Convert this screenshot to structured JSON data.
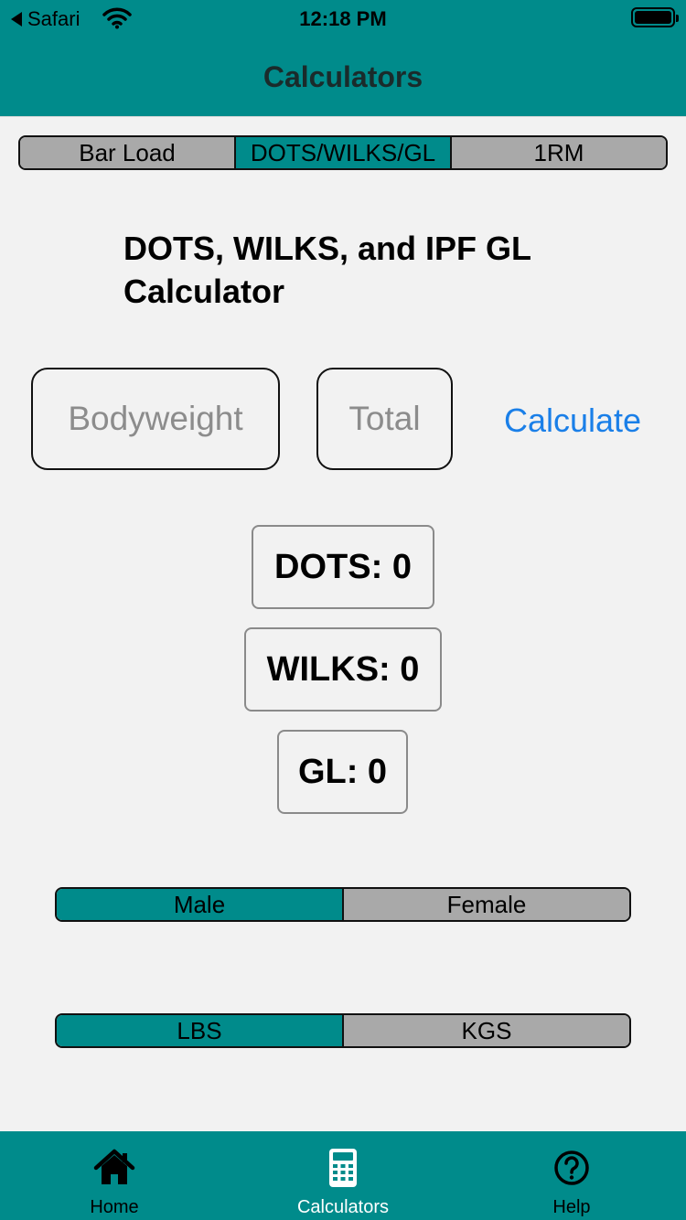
{
  "status_bar": {
    "back_label": "Safari",
    "time": "12:18 PM"
  },
  "nav": {
    "title": "Calculators"
  },
  "calculator_tabs": [
    {
      "label": "Bar Load",
      "active": false
    },
    {
      "label": "DOTS/WILKS/GL",
      "active": true
    },
    {
      "label": "1RM",
      "active": false
    }
  ],
  "calculator": {
    "title": "DOTS, WILKS, and IPF GL Calculator",
    "bodyweight_placeholder": "Bodyweight",
    "total_placeholder": "Total",
    "calculate_label": "Calculate"
  },
  "results": {
    "dots": "DOTS: 0",
    "wilks": "WILKS: 0",
    "gl": "GL: 0"
  },
  "sex_options": [
    {
      "label": "Male",
      "active": true
    },
    {
      "label": "Female",
      "active": false
    }
  ],
  "unit_options": [
    {
      "label": "LBS",
      "active": true
    },
    {
      "label": "KGS",
      "active": false
    }
  ],
  "tab_bar": [
    {
      "label": "Home",
      "icon": "home-icon",
      "active": false
    },
    {
      "label": "Calculators",
      "icon": "calculator-icon",
      "active": true
    },
    {
      "label": "Help",
      "icon": "question-circle-icon",
      "active": false
    }
  ],
  "colors": {
    "accent": "#008b8b",
    "inactive_segment": "#a9a9a9",
    "link": "#1a7fe8",
    "background": "#f2f2f2"
  }
}
